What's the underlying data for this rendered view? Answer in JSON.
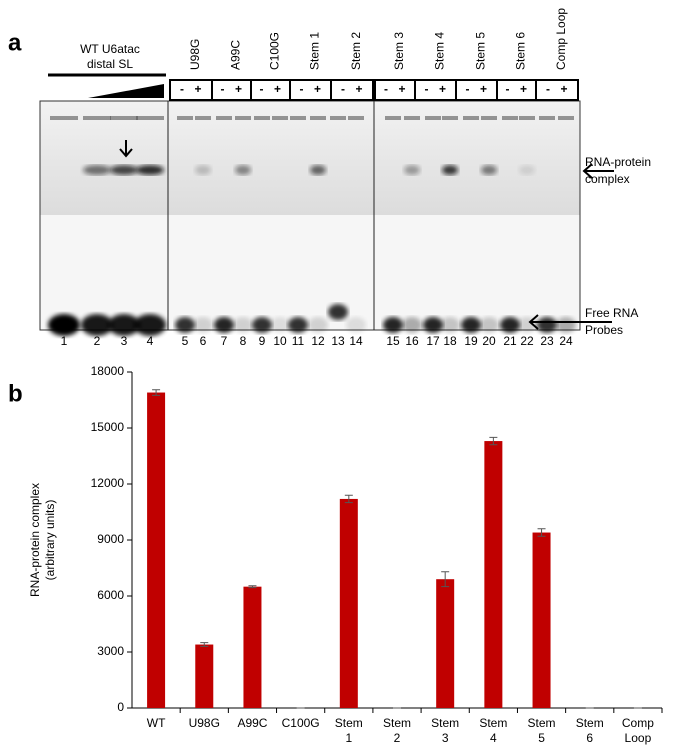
{
  "figure": {
    "panel_a": "a",
    "panel_b": "b",
    "wt_label": [
      "WT U6atac",
      "distal SL"
    ],
    "groups": [
      "U98G",
      "A99C",
      "C100G",
      "Stem 1",
      "Stem 2",
      "Stem 3",
      "Stem 4",
      "Stem 5",
      "Stem 6",
      "Comp Loop"
    ],
    "signs": [
      "-",
      "+"
    ],
    "lanes": [
      1,
      2,
      3,
      4,
      5,
      6,
      7,
      8,
      9,
      10,
      11,
      12,
      13,
      14,
      15,
      16,
      17,
      18,
      19,
      20,
      21,
      22,
      23,
      24
    ],
    "complex_label": [
      "RNA-protein",
      "complex"
    ],
    "probe_label": [
      "Free RNA",
      "Probes"
    ]
  },
  "chart_data": {
    "type": "bar",
    "y_label": [
      "RNA-protein complex",
      "(arbitrary units)"
    ],
    "categories": [
      [
        "WT"
      ],
      [
        "U98G"
      ],
      [
        "A99C"
      ],
      [
        "C100G"
      ],
      [
        "Stem",
        "1"
      ],
      [
        "Stem",
        "2"
      ],
      [
        "Stem",
        "3"
      ],
      [
        "Stem",
        "4"
      ],
      [
        "Stem",
        "5"
      ],
      [
        "Stem",
        "6"
      ],
      [
        "Comp",
        "Loop"
      ]
    ],
    "values": [
      16900,
      3400,
      6500,
      0,
      11200,
      0,
      6900,
      14300,
      9400,
      0,
      0
    ],
    "errors": [
      150,
      100,
      50,
      0,
      200,
      0,
      400,
      200,
      200,
      0,
      0
    ],
    "color": "#c00000",
    "ylim": [
      0,
      18000
    ],
    "yticks": [
      0,
      3000,
      6000,
      9000,
      12000,
      15000,
      18000
    ]
  }
}
